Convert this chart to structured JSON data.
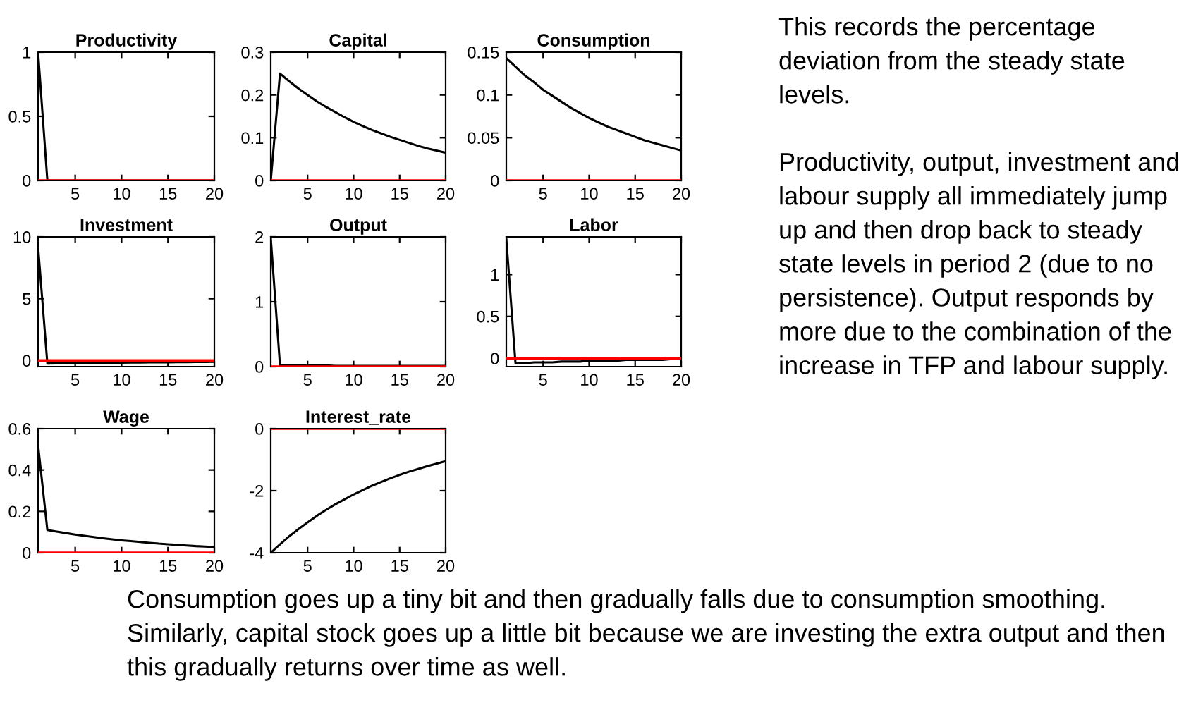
{
  "chart_data": [
    {
      "type": "line",
      "title": "Productivity",
      "x": [
        1,
        2,
        3,
        4,
        5,
        6,
        7,
        8,
        9,
        10,
        11,
        12,
        13,
        14,
        15,
        16,
        17,
        18,
        19,
        20
      ],
      "xlim": [
        1,
        20
      ],
      "xticks": [
        5,
        10,
        15,
        20
      ],
      "ylim": [
        0,
        1
      ],
      "yticks": [
        0,
        0.5,
        1
      ],
      "grid": false,
      "series": [
        {
          "color": "#000000",
          "values": [
            1,
            0,
            0,
            0,
            0,
            0,
            0,
            0,
            0,
            0,
            0,
            0,
            0,
            0,
            0,
            0,
            0,
            0,
            0,
            0
          ]
        }
      ],
      "ref_lines": [
        {
          "axis": "y",
          "value": 0,
          "color": "#ff0000"
        }
      ]
    },
    {
      "type": "line",
      "title": "Capital",
      "x": [
        1,
        2,
        3,
        4,
        5,
        6,
        7,
        8,
        9,
        10,
        11,
        12,
        13,
        14,
        15,
        16,
        17,
        18,
        19,
        20
      ],
      "xlim": [
        1,
        20
      ],
      "xticks": [
        5,
        10,
        15,
        20
      ],
      "ylim": [
        0,
        0.3
      ],
      "yticks": [
        0,
        0.1,
        0.2,
        0.3
      ],
      "grid": false,
      "series": [
        {
          "color": "#000000",
          "values": [
            0,
            0.25,
            0.232,
            0.215,
            0.2,
            0.185,
            0.172,
            0.16,
            0.148,
            0.137,
            0.127,
            0.118,
            0.11,
            0.102,
            0.095,
            0.088,
            0.081,
            0.075,
            0.07,
            0.065
          ]
        }
      ],
      "ref_lines": [
        {
          "axis": "y",
          "value": 0,
          "color": "#ff0000"
        }
      ]
    },
    {
      "type": "line",
      "title": "Consumption",
      "x": [
        1,
        2,
        3,
        4,
        5,
        6,
        7,
        8,
        9,
        10,
        11,
        12,
        13,
        14,
        15,
        16,
        17,
        18,
        19,
        20
      ],
      "xlim": [
        1,
        20
      ],
      "xticks": [
        5,
        10,
        15,
        20
      ],
      "ylim": [
        0,
        0.15
      ],
      "yticks": [
        0,
        0.05,
        0.1,
        0.15
      ],
      "grid": false,
      "series": [
        {
          "color": "#000000",
          "values": [
            0.143,
            0.133,
            0.123,
            0.115,
            0.106,
            0.099,
            0.092,
            0.085,
            0.079,
            0.073,
            0.068,
            0.063,
            0.059,
            0.055,
            0.051,
            0.047,
            0.044,
            0.041,
            0.038,
            0.035
          ]
        }
      ],
      "ref_lines": [
        {
          "axis": "y",
          "value": 0,
          "color": "#ff0000"
        }
      ]
    },
    {
      "type": "line",
      "title": "Investment",
      "x": [
        1,
        2,
        3,
        4,
        5,
        6,
        7,
        8,
        9,
        10,
        11,
        12,
        13,
        14,
        15,
        16,
        17,
        18,
        19,
        20
      ],
      "xlim": [
        1,
        20
      ],
      "xticks": [
        5,
        10,
        15,
        20
      ],
      "ylim": [
        -0.5,
        10
      ],
      "yticks": [
        0,
        5,
        10
      ],
      "grid": false,
      "series": [
        {
          "color": "#000000",
          "values": [
            9.2,
            -0.25,
            -0.24,
            -0.23,
            -0.22,
            -0.21,
            -0.2,
            -0.2,
            -0.19,
            -0.18,
            -0.17,
            -0.17,
            -0.16,
            -0.15,
            -0.15,
            -0.14,
            -0.14,
            -0.13,
            -0.13,
            -0.12
          ]
        }
      ],
      "ref_lines": [
        {
          "axis": "y",
          "value": 0,
          "color": "#ff0000"
        }
      ]
    },
    {
      "type": "line",
      "title": "Output",
      "x": [
        1,
        2,
        3,
        4,
        5,
        6,
        7,
        8,
        9,
        10,
        11,
        12,
        13,
        14,
        15,
        16,
        17,
        18,
        19,
        20
      ],
      "xlim": [
        1,
        20
      ],
      "xticks": [
        5,
        10,
        15,
        20
      ],
      "ylim": [
        0,
        2
      ],
      "yticks": [
        0,
        1,
        2
      ],
      "grid": false,
      "series": [
        {
          "color": "#000000",
          "values": [
            1.98,
            0.02,
            0.02,
            0.02,
            0.02,
            0.02,
            0.02,
            0.01,
            0.01,
            0.01,
            0.01,
            0.01,
            0.01,
            0.01,
            0.01,
            0.01,
            0.01,
            0.01,
            0.01,
            0.01
          ]
        }
      ],
      "ref_lines": [
        {
          "axis": "y",
          "value": 0,
          "color": "#ff0000"
        }
      ]
    },
    {
      "type": "line",
      "title": "Labor",
      "x": [
        1,
        2,
        3,
        4,
        5,
        6,
        7,
        8,
        9,
        10,
        11,
        12,
        13,
        14,
        15,
        16,
        17,
        18,
        19,
        20
      ],
      "xlim": [
        1,
        20
      ],
      "xticks": [
        5,
        10,
        15,
        20
      ],
      "ylim": [
        -0.1,
        1.45
      ],
      "yticks": [
        0,
        0.5,
        1
      ],
      "grid": false,
      "series": [
        {
          "color": "#000000",
          "values": [
            1.43,
            -0.06,
            -0.06,
            -0.05,
            -0.05,
            -0.05,
            -0.04,
            -0.04,
            -0.04,
            -0.03,
            -0.03,
            -0.03,
            -0.03,
            -0.02,
            -0.02,
            -0.02,
            -0.02,
            -0.02,
            -0.01,
            -0.01
          ]
        }
      ],
      "ref_lines": [
        {
          "axis": "y",
          "value": 0,
          "color": "#ff0000"
        }
      ]
    },
    {
      "type": "line",
      "title": "Wage",
      "x": [
        1,
        2,
        3,
        4,
        5,
        6,
        7,
        8,
        9,
        10,
        11,
        12,
        13,
        14,
        15,
        16,
        17,
        18,
        19,
        20
      ],
      "xlim": [
        1,
        20
      ],
      "xticks": [
        5,
        10,
        15,
        20
      ],
      "ylim": [
        0,
        0.6
      ],
      "yticks": [
        0,
        0.2,
        0.4,
        0.6
      ],
      "grid": false,
      "series": [
        {
          "color": "#000000",
          "values": [
            0.52,
            0.11,
            0.102,
            0.095,
            0.088,
            0.082,
            0.076,
            0.07,
            0.065,
            0.06,
            0.056,
            0.052,
            0.048,
            0.044,
            0.041,
            0.038,
            0.035,
            0.032,
            0.03,
            0.027
          ]
        }
      ],
      "ref_lines": [
        {
          "axis": "y",
          "value": 0,
          "color": "#ff0000"
        }
      ]
    },
    {
      "type": "line",
      "title": "Interest_rate",
      "x": [
        1,
        2,
        3,
        4,
        5,
        6,
        7,
        8,
        9,
        10,
        11,
        12,
        13,
        14,
        15,
        16,
        17,
        18,
        19,
        20
      ],
      "xlim": [
        1,
        20
      ],
      "xticks": [
        5,
        10,
        15,
        20
      ],
      "ylim": [
        -4,
        0
      ],
      "yticks": [
        -4,
        -2,
        0
      ],
      "grid": false,
      "series": [
        {
          "color": "#000000",
          "values": [
            -4,
            -3.73,
            -3.47,
            -3.24,
            -3.02,
            -2.81,
            -2.62,
            -2.44,
            -2.28,
            -2.12,
            -1.98,
            -1.84,
            -1.72,
            -1.6,
            -1.49,
            -1.39,
            -1.3,
            -1.21,
            -1.13,
            -1.05
          ]
        }
      ],
      "ref_lines": [
        {
          "axis": "y",
          "value": 0,
          "color": "#ff0000"
        }
      ]
    },
    {
      "type": "other",
      "annotations": [
        "This records the percentage deviation from the steady state levels.",
        "Productivity, output, investment and labour supply all immediately jump up and then drop back to steady state levels in period 2 (due to no persistence). Output responds by more due to the combination of the increase in TFP and labour supply.",
        "Consumption goes up a tiny bit and then gradually falls due to consumption smoothing. Similarly, capital stock goes up a little bit because we are investing the extra output and then this gradually returns over time as well."
      ]
    }
  ]
}
